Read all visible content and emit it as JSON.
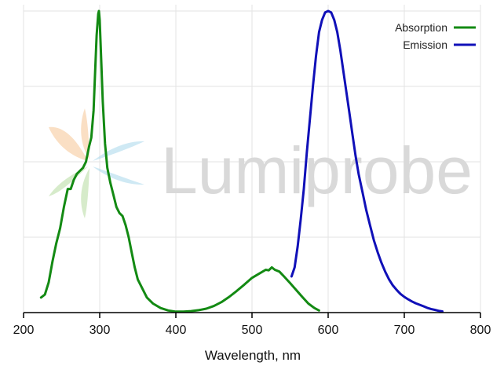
{
  "chart_data": {
    "type": "line",
    "title": "",
    "xlabel": "Wavelength, nm",
    "ylabel": "",
    "xlim": [
      200,
      800
    ],
    "ylim": [
      0,
      1
    ],
    "x_ticks": [
      200,
      300,
      400,
      500,
      600,
      700,
      800
    ],
    "x_tick_labels": [
      "200",
      "300",
      "400",
      "500",
      "600",
      "700",
      "800"
    ],
    "y_gridlines": [
      0.25,
      0.5,
      0.75,
      1.0
    ],
    "grid": true,
    "legend_position": "top-right",
    "watermark": "Lumiprobe",
    "series": [
      {
        "name": "Absorption",
        "color": "#138a13",
        "points": [
          [
            223,
            0.05
          ],
          [
            228,
            0.06
          ],
          [
            233,
            0.1
          ],
          [
            238,
            0.17
          ],
          [
            243,
            0.23
          ],
          [
            248,
            0.28
          ],
          [
            253,
            0.35
          ],
          [
            258,
            0.41
          ],
          [
            262,
            0.41
          ],
          [
            266,
            0.44
          ],
          [
            270,
            0.46
          ],
          [
            274,
            0.47
          ],
          [
            278,
            0.48
          ],
          [
            282,
            0.5
          ],
          [
            286,
            0.55
          ],
          [
            289,
            0.58
          ],
          [
            292,
            0.67
          ],
          [
            294,
            0.8
          ],
          [
            296,
            0.92
          ],
          [
            298,
            0.99
          ],
          [
            299,
            1.0
          ],
          [
            300,
            0.97
          ],
          [
            302,
            0.84
          ],
          [
            304,
            0.7
          ],
          [
            307,
            0.56
          ],
          [
            310,
            0.48
          ],
          [
            314,
            0.43
          ],
          [
            318,
            0.39
          ],
          [
            322,
            0.35
          ],
          [
            326,
            0.33
          ],
          [
            330,
            0.32
          ],
          [
            334,
            0.29
          ],
          [
            338,
            0.25
          ],
          [
            342,
            0.2
          ],
          [
            346,
            0.15
          ],
          [
            350,
            0.11
          ],
          [
            356,
            0.08
          ],
          [
            362,
            0.05
          ],
          [
            370,
            0.03
          ],
          [
            380,
            0.015
          ],
          [
            390,
            0.007
          ],
          [
            400,
            0.003
          ],
          [
            410,
            0.003
          ],
          [
            420,
            0.005
          ],
          [
            430,
            0.008
          ],
          [
            440,
            0.013
          ],
          [
            450,
            0.022
          ],
          [
            460,
            0.035
          ],
          [
            470,
            0.052
          ],
          [
            480,
            0.072
          ],
          [
            490,
            0.093
          ],
          [
            500,
            0.115
          ],
          [
            510,
            0.13
          ],
          [
            518,
            0.142
          ],
          [
            522,
            0.14
          ],
          [
            526,
            0.15
          ],
          [
            530,
            0.142
          ],
          [
            536,
            0.136
          ],
          [
            542,
            0.12
          ],
          [
            550,
            0.098
          ],
          [
            558,
            0.075
          ],
          [
            566,
            0.052
          ],
          [
            574,
            0.03
          ],
          [
            582,
            0.015
          ],
          [
            588,
            0.007
          ]
        ]
      },
      {
        "name": "Emission",
        "color": "#1010b8",
        "points": [
          [
            552,
            0.12
          ],
          [
            556,
            0.15
          ],
          [
            560,
            0.22
          ],
          [
            564,
            0.31
          ],
          [
            568,
            0.41
          ],
          [
            572,
            0.53
          ],
          [
            576,
            0.64
          ],
          [
            580,
            0.75
          ],
          [
            584,
            0.85
          ],
          [
            588,
            0.93
          ],
          [
            592,
            0.97
          ],
          [
            596,
            0.995
          ],
          [
            600,
            1.0
          ],
          [
            604,
            0.995
          ],
          [
            608,
            0.97
          ],
          [
            612,
            0.93
          ],
          [
            616,
            0.87
          ],
          [
            620,
            0.8
          ],
          [
            624,
            0.73
          ],
          [
            628,
            0.66
          ],
          [
            632,
            0.59
          ],
          [
            636,
            0.52
          ],
          [
            640,
            0.46
          ],
          [
            645,
            0.4
          ],
          [
            650,
            0.34
          ],
          [
            655,
            0.29
          ],
          [
            660,
            0.24
          ],
          [
            665,
            0.2
          ],
          [
            670,
            0.165
          ],
          [
            675,
            0.135
          ],
          [
            680,
            0.11
          ],
          [
            685,
            0.09
          ],
          [
            690,
            0.075
          ],
          [
            695,
            0.062
          ],
          [
            700,
            0.052
          ],
          [
            705,
            0.044
          ],
          [
            710,
            0.037
          ],
          [
            715,
            0.031
          ],
          [
            720,
            0.026
          ],
          [
            725,
            0.021
          ],
          [
            730,
            0.016
          ],
          [
            735,
            0.012
          ],
          [
            740,
            0.009
          ],
          [
            745,
            0.006
          ],
          [
            750,
            0.004
          ]
        ]
      }
    ]
  }
}
